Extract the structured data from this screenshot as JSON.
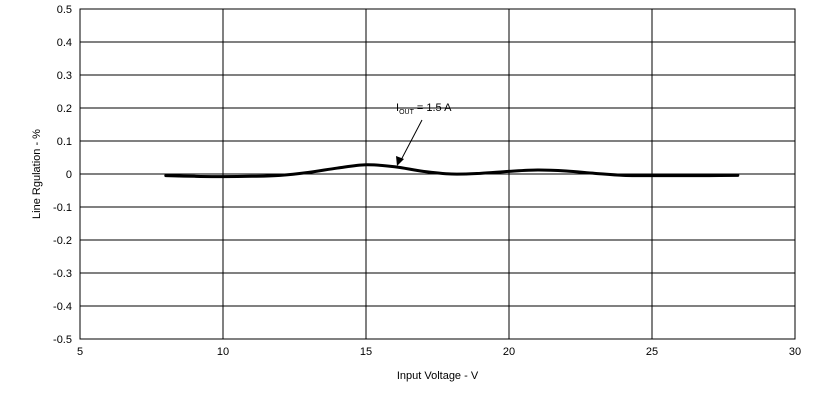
{
  "chart_data": {
    "type": "line",
    "title": "",
    "xlabel": "Input Voltage - V",
    "ylabel": "Line Rgulation - %",
    "xlim": [
      5,
      30
    ],
    "ylim": [
      -0.5,
      0.5
    ],
    "xticks": [
      5,
      10,
      15,
      20,
      25,
      30
    ],
    "yticks": [
      0.5,
      0.4,
      0.3,
      0.2,
      0.1,
      0,
      -0.1,
      -0.2,
      -0.3,
      -0.4,
      -0.5
    ],
    "xtick_labels": [
      "5",
      "10",
      "15",
      "20",
      "25",
      "30"
    ],
    "ytick_labels": [
      "0.5",
      "0.4",
      "0.3",
      "0.2",
      "0.1",
      "0",
      "-0.1",
      "-0.2",
      "-0.3",
      "-0.4",
      "-0.5"
    ],
    "grid": true,
    "series": [
      {
        "name": "IOUT = 1.5 A",
        "color": "#000000",
        "x": [
          8,
          9,
          10,
          11,
          12,
          13,
          14,
          15,
          16,
          17,
          18,
          19,
          20,
          21,
          22,
          23,
          24,
          25,
          26,
          27,
          28
        ],
        "y": [
          -0.005,
          -0.007,
          -0.008,
          -0.007,
          -0.004,
          0.005,
          0.018,
          0.028,
          0.022,
          0.008,
          0.0,
          0.002,
          0.008,
          0.012,
          0.009,
          0.002,
          -0.004,
          -0.005,
          -0.005,
          -0.005,
          -0.004
        ]
      }
    ],
    "annotation": {
      "main": "I",
      "sub": "OUT",
      "rest": " = 1.5 A",
      "target_x": 16,
      "target_y": 0.022
    }
  }
}
